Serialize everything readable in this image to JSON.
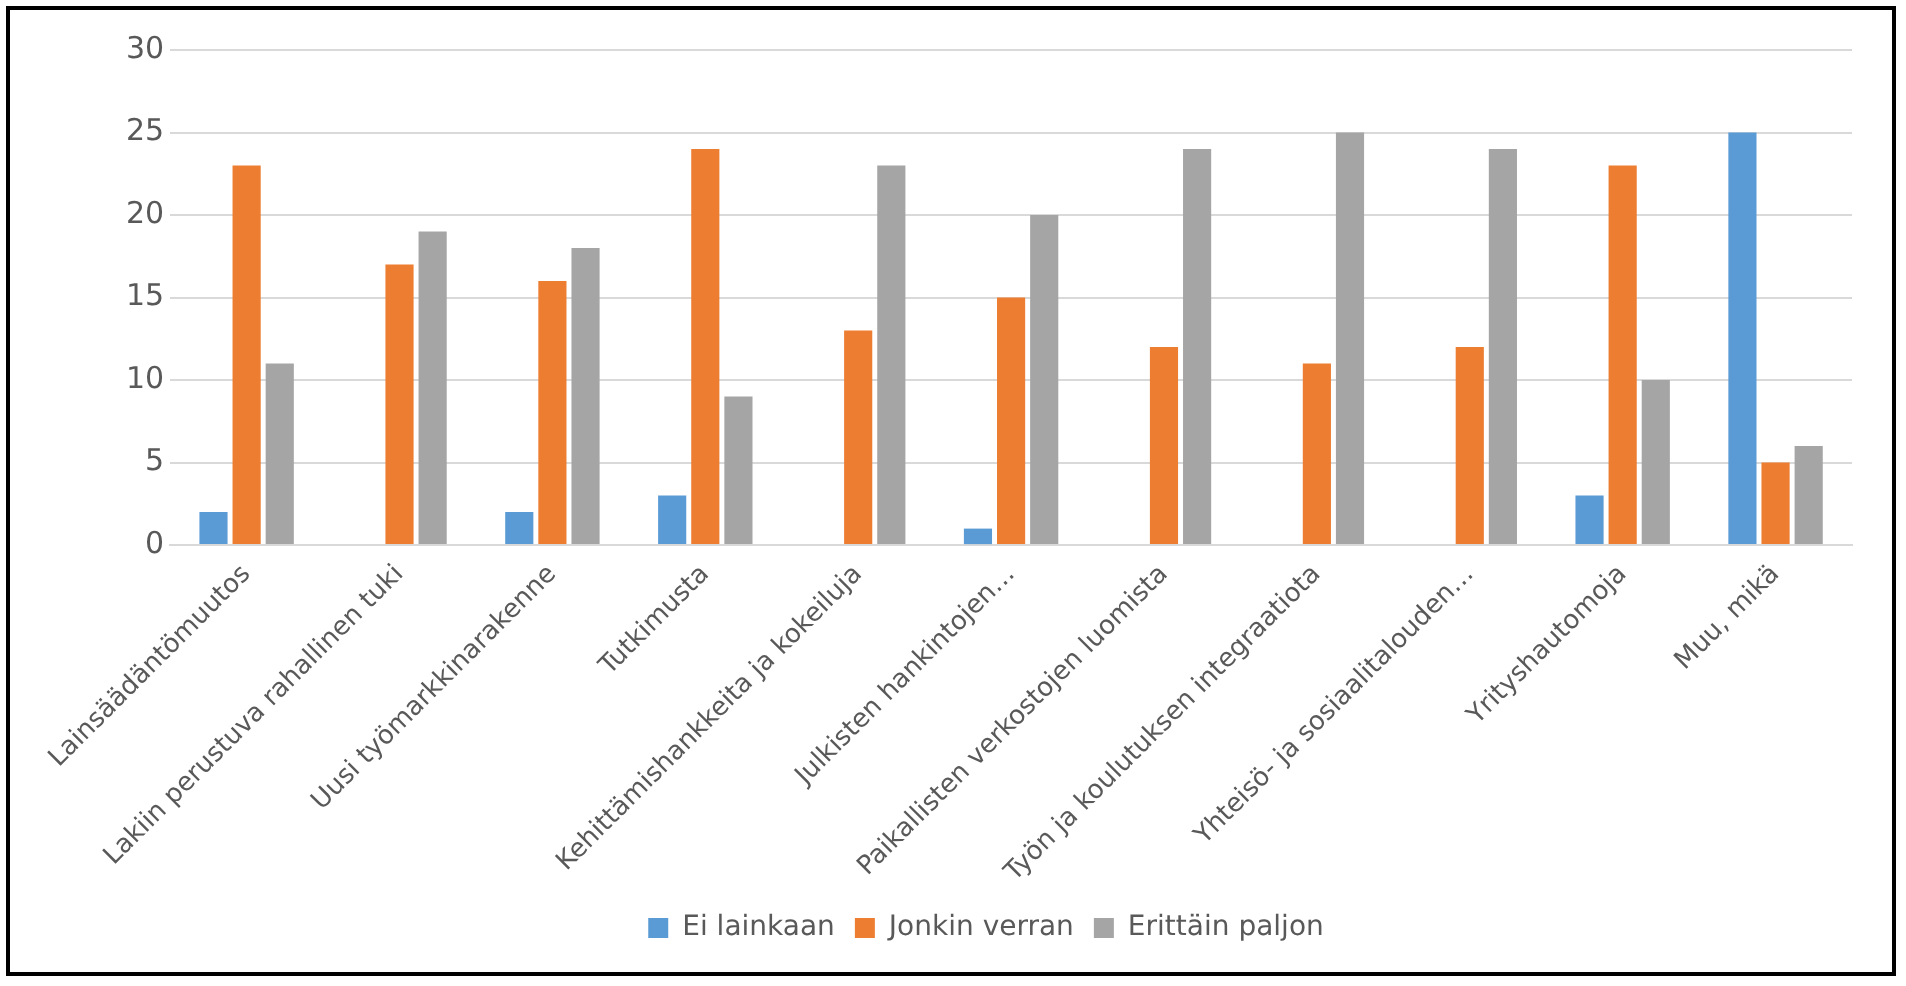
{
  "chart_data": {
    "type": "bar",
    "categories": [
      "Lainsäädäntömuutos",
      "Lakiin perustuva rahallinen tuki",
      "Uusi työmarkkinarakenne",
      "Tutkimusta",
      "Kehittämishankkeita ja kokeiluja",
      "Julkisten hankintojen…",
      "Paikallisten verkostojen luomista",
      "Työn ja koulutuksen integraatiota",
      "Yhteisö- ja sosiaalitalouden…",
      "Yrityshautomoja",
      "Muu, mikä"
    ],
    "series": [
      {
        "name": "Ei lainkaan",
        "color": "#5b9bd5",
        "values": [
          2,
          0,
          2,
          3,
          0,
          1,
          0,
          0,
          0,
          3,
          25
        ]
      },
      {
        "name": "Jonkin verran",
        "color": "#ed7d31",
        "values": [
          23,
          17,
          16,
          24,
          13,
          15,
          12,
          11,
          12,
          23,
          5
        ]
      },
      {
        "name": "Erittäin paljon",
        "color": "#a5a5a5",
        "values": [
          11,
          19,
          18,
          9,
          23,
          20,
          24,
          25,
          24,
          10,
          6
        ]
      }
    ],
    "ylim": [
      0,
      30
    ],
    "yticks": [
      0,
      5,
      10,
      15,
      20,
      25,
      30
    ],
    "grid": "y",
    "legend": "bottom"
  }
}
